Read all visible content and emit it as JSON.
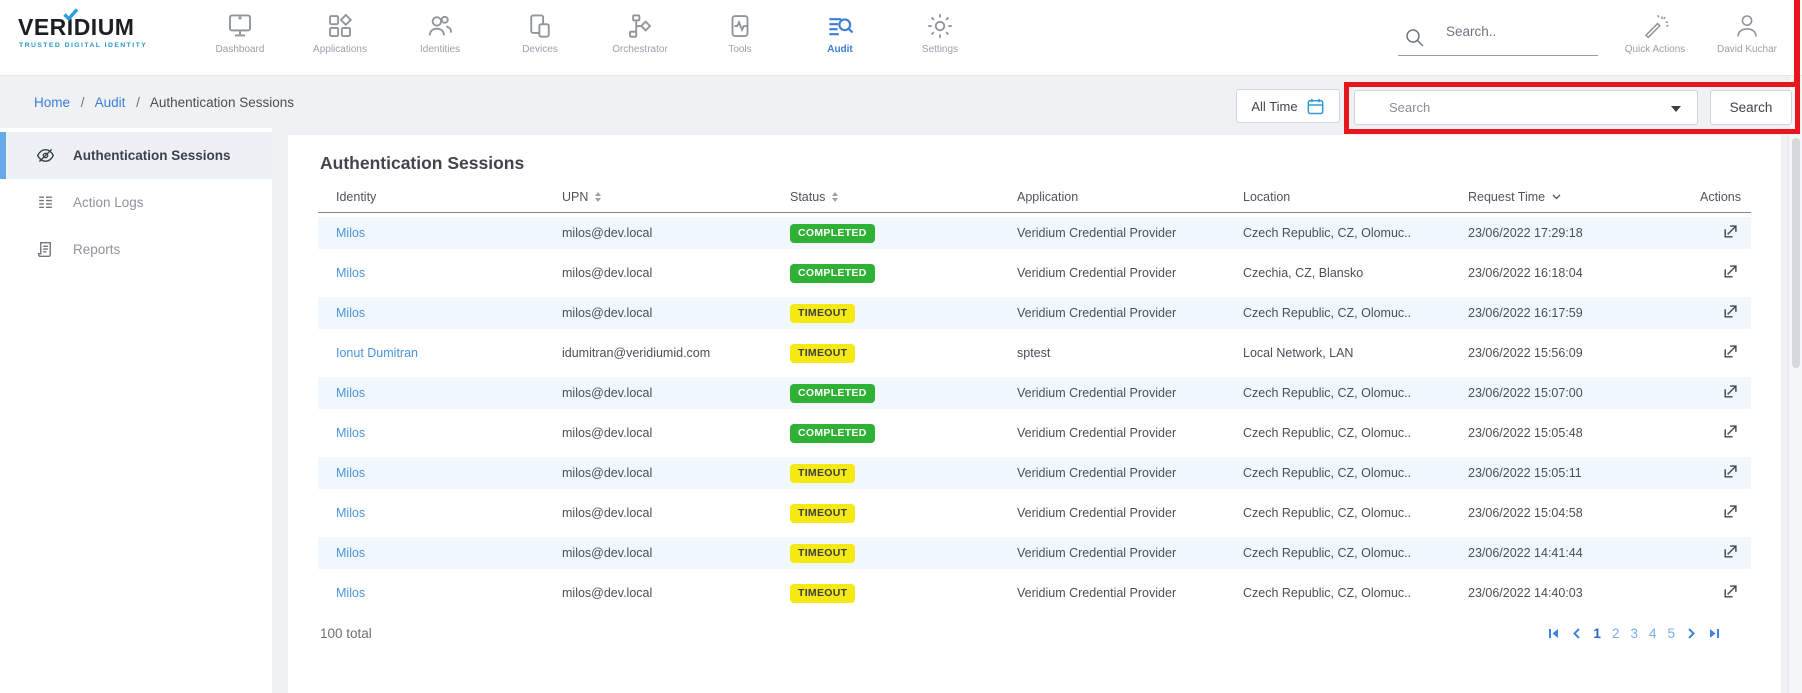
{
  "brand": {
    "name_prefix": "VER",
    "name_i": "I",
    "name_suffix": "DIUM",
    "tagline": "TRUSTED DIGITAL IDENTITY"
  },
  "topnav": {
    "items": [
      {
        "label": "Dashboard",
        "active": false
      },
      {
        "label": "Applications",
        "active": false
      },
      {
        "label": "Identities",
        "active": false
      },
      {
        "label": "Devices",
        "active": false
      },
      {
        "label": "Orchestrator",
        "active": false
      },
      {
        "label": "Tools",
        "active": false
      },
      {
        "label": "Audit",
        "active": true
      },
      {
        "label": "Settings",
        "active": false
      }
    ]
  },
  "topbar": {
    "search_placeholder": "Search..",
    "quick_actions_label": "Quick Actions",
    "user_name": "David Kuchar"
  },
  "breadcrumb": {
    "separator": "/",
    "items": [
      {
        "label": "Home",
        "link": true
      },
      {
        "label": "Audit",
        "link": true
      },
      {
        "label": "Authentication Sessions",
        "link": false
      }
    ]
  },
  "filters": {
    "time_range_label": "All Time",
    "search_placeholder": "Search",
    "search_button_label": "Search"
  },
  "sidebar": {
    "items": [
      {
        "label": "Authentication Sessions",
        "icon": "auth-sessions-icon",
        "active": true
      },
      {
        "label": "Action Logs",
        "icon": "action-logs-icon",
        "active": false
      },
      {
        "label": "Reports",
        "icon": "reports-icon",
        "active": false
      }
    ]
  },
  "main": {
    "title": "Authentication Sessions",
    "table": {
      "headers": [
        {
          "label": "Identity",
          "sort": "none"
        },
        {
          "label": "UPN",
          "sort": "both"
        },
        {
          "label": "Status",
          "sort": "both"
        },
        {
          "label": "Application",
          "sort": "none"
        },
        {
          "label": "Location",
          "sort": "none"
        },
        {
          "label": "Request Time",
          "sort": "desc"
        },
        {
          "label": "Actions",
          "sort": "none"
        }
      ],
      "rows": [
        {
          "identity": "Milos",
          "upn": "milos@dev.local",
          "status": "COMPLETED",
          "application": "Veridium Credential Provider",
          "location": "Czech Republic, CZ, Olomuc..",
          "request_time": "23/06/2022 17:29:18"
        },
        {
          "identity": "Milos",
          "upn": "milos@dev.local",
          "status": "COMPLETED",
          "application": "Veridium Credential Provider",
          "location": "Czechia, CZ, Blansko",
          "request_time": "23/06/2022 16:18:04"
        },
        {
          "identity": "Milos",
          "upn": "milos@dev.local",
          "status": "TIMEOUT",
          "application": "Veridium Credential Provider",
          "location": "Czech Republic, CZ, Olomuc..",
          "request_time": "23/06/2022 16:17:59"
        },
        {
          "identity": "Ionut Dumitran",
          "upn": "idumitran@veridiumid.com",
          "status": "TIMEOUT",
          "application": "sptest",
          "location": "Local Network, LAN",
          "request_time": "23/06/2022 15:56:09"
        },
        {
          "identity": "Milos",
          "upn": "milos@dev.local",
          "status": "COMPLETED",
          "application": "Veridium Credential Provider",
          "location": "Czech Republic, CZ, Olomuc..",
          "request_time": "23/06/2022 15:07:00"
        },
        {
          "identity": "Milos",
          "upn": "milos@dev.local",
          "status": "COMPLETED",
          "application": "Veridium Credential Provider",
          "location": "Czech Republic, CZ, Olomuc..",
          "request_time": "23/06/2022 15:05:48"
        },
        {
          "identity": "Milos",
          "upn": "milos@dev.local",
          "status": "TIMEOUT",
          "application": "Veridium Credential Provider",
          "location": "Czech Republic, CZ, Olomuc..",
          "request_time": "23/06/2022 15:05:11"
        },
        {
          "identity": "Milos",
          "upn": "milos@dev.local",
          "status": "TIMEOUT",
          "application": "Veridium Credential Provider",
          "location": "Czech Republic, CZ, Olomuc..",
          "request_time": "23/06/2022 15:04:58"
        },
        {
          "identity": "Milos",
          "upn": "milos@dev.local",
          "status": "TIMEOUT",
          "application": "Veridium Credential Provider",
          "location": "Czech Republic, CZ, Olomuc..",
          "request_time": "23/06/2022 14:41:44"
        },
        {
          "identity": "Milos",
          "upn": "milos@dev.local",
          "status": "TIMEOUT",
          "application": "Veridium Credential Provider",
          "location": "Czech Republic, CZ, Olomuc..",
          "request_time": "23/06/2022 14:40:03"
        }
      ]
    },
    "total_label": "100 total",
    "pagination": {
      "pages": [
        "1",
        "2",
        "3",
        "4",
        "5"
      ],
      "active_page": "1"
    }
  },
  "colors": {
    "accent_blue": "#3a7ed8",
    "brand_blue": "#2596cc",
    "link_blue": "#4a95de",
    "status_completed_bg": "#2eb135",
    "status_timeout_bg": "#f6e912",
    "row_stripe": "#f0f7fd",
    "annotation_red": "#e9151d"
  },
  "annotation": {
    "type": "highlight-box",
    "target": "filter search controls"
  }
}
